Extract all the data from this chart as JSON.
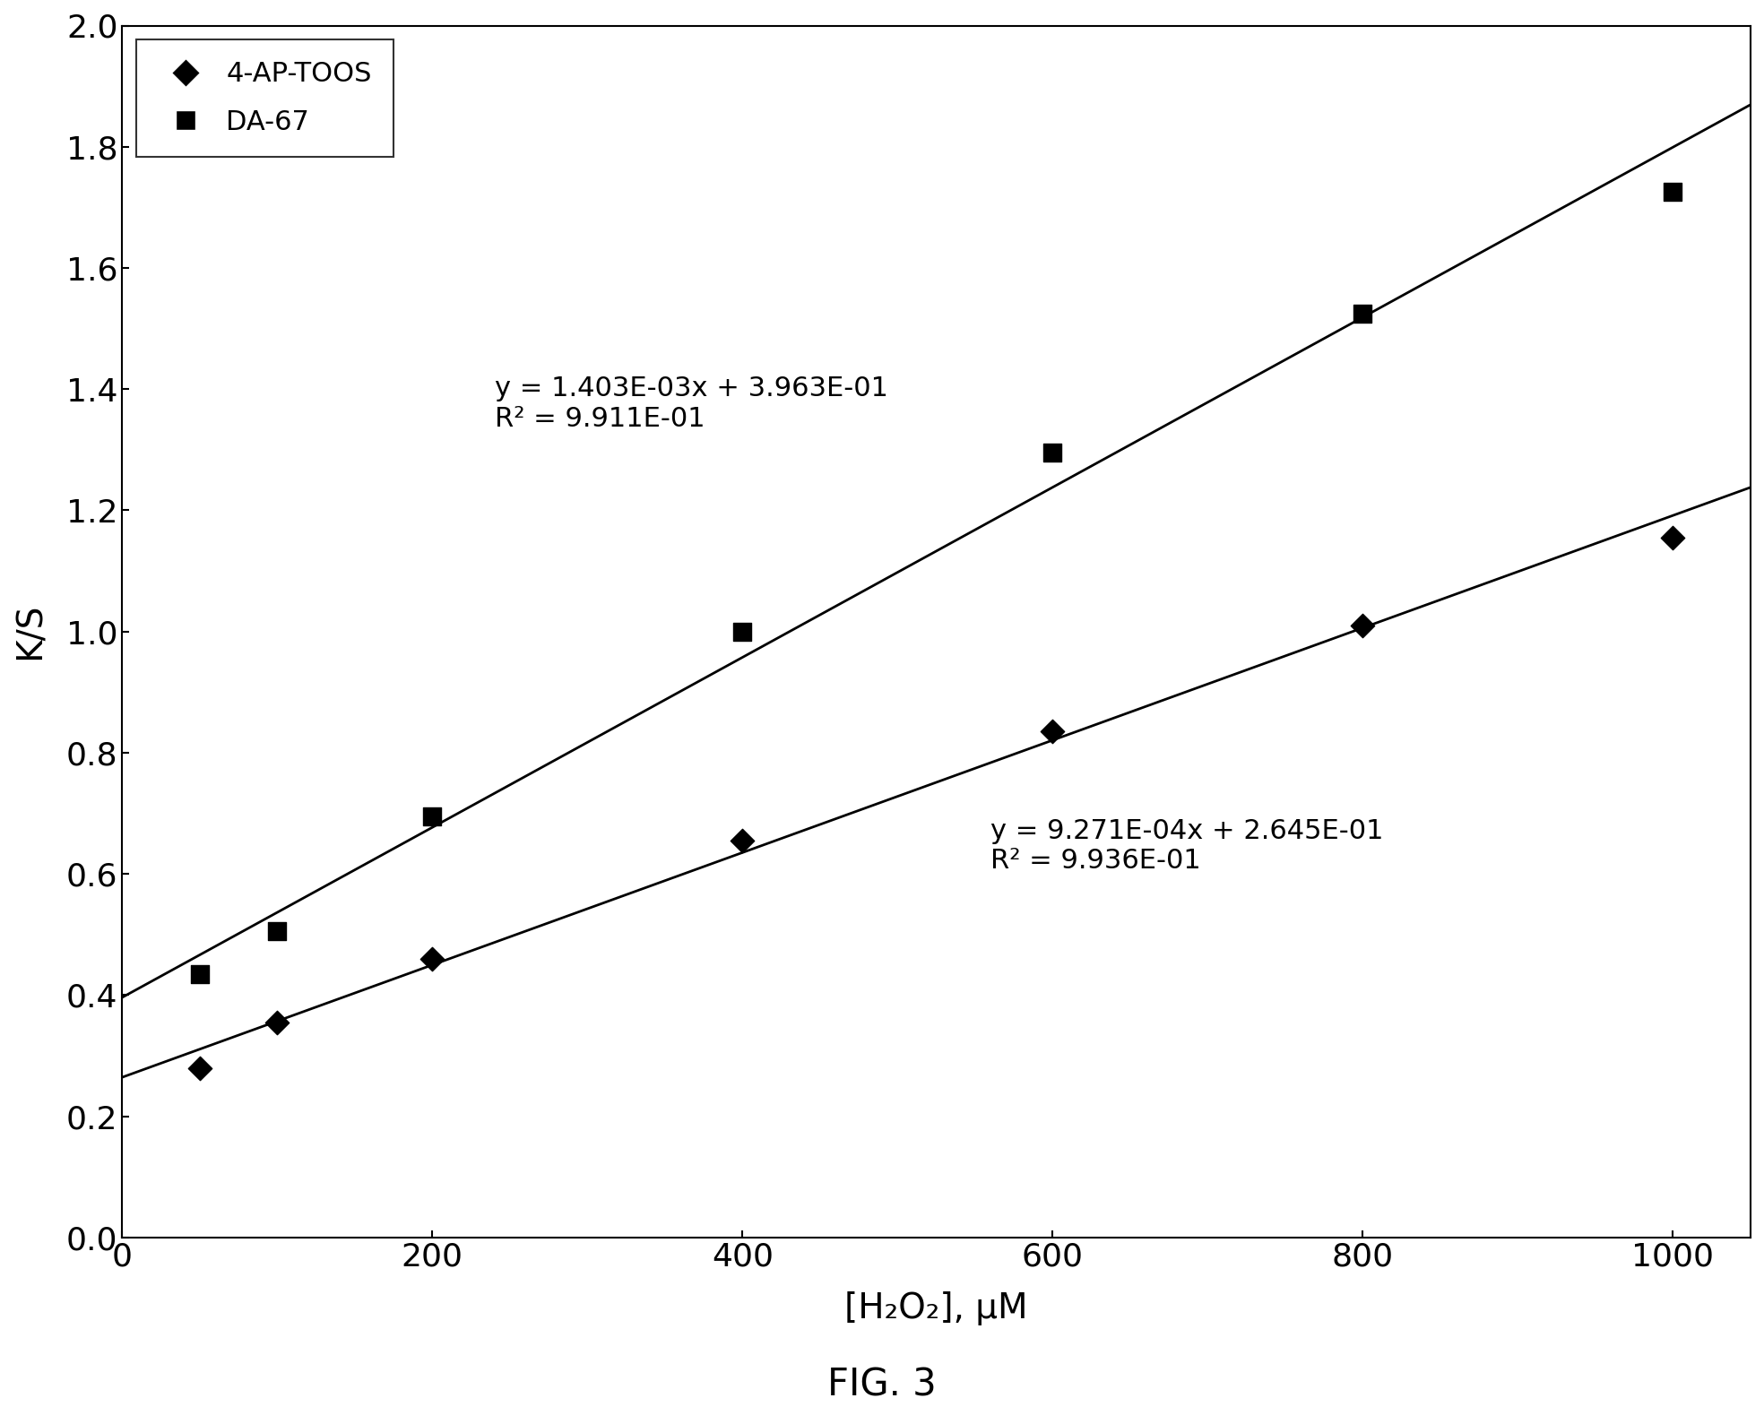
{
  "title": "FIG. 3",
  "xlabel": "[H₂O₂], μM",
  "ylabel": "K/S",
  "xlim": [
    0,
    1050
  ],
  "ylim": [
    0,
    2.0
  ],
  "xticks": [
    0,
    200,
    400,
    600,
    800,
    1000
  ],
  "yticks": [
    0,
    0.2,
    0.4,
    0.6,
    0.8,
    1.0,
    1.2,
    1.4,
    1.6,
    1.8,
    2.0
  ],
  "series1_label": "4-AP-TOOS",
  "series1_x": [
    50,
    100,
    200,
    400,
    600,
    800,
    1000
  ],
  "series1_y": [
    0.28,
    0.355,
    0.46,
    0.655,
    0.835,
    1.01,
    1.155
  ],
  "series1_slope": 0.0009271,
  "series1_intercept": 0.2645,
  "series1_r2": "9.936E-01",
  "series1_eq": "y = 9.271E-04x + 2.645E-01",
  "series2_label": "DA-67",
  "series2_x": [
    50,
    100,
    200,
    400,
    600,
    800,
    1000
  ],
  "series2_y": [
    0.435,
    0.505,
    0.695,
    1.0,
    1.295,
    1.525,
    1.725
  ],
  "series2_slope": 0.001403,
  "series2_intercept": 0.3963,
  "series2_r2": "9.911E-01",
  "series2_eq": "y = 1.403E-03x + 3.963E-01",
  "line_color": "#000000",
  "marker_color": "#000000",
  "background_color": "#ffffff",
  "ann_da67_x": 240,
  "ann_da67_y": 1.33,
  "ann_aptoos_x": 560,
  "ann_aptoos_y": 0.6,
  "figwidth": 19.68,
  "figheight": 15.89,
  "dpi": 100
}
